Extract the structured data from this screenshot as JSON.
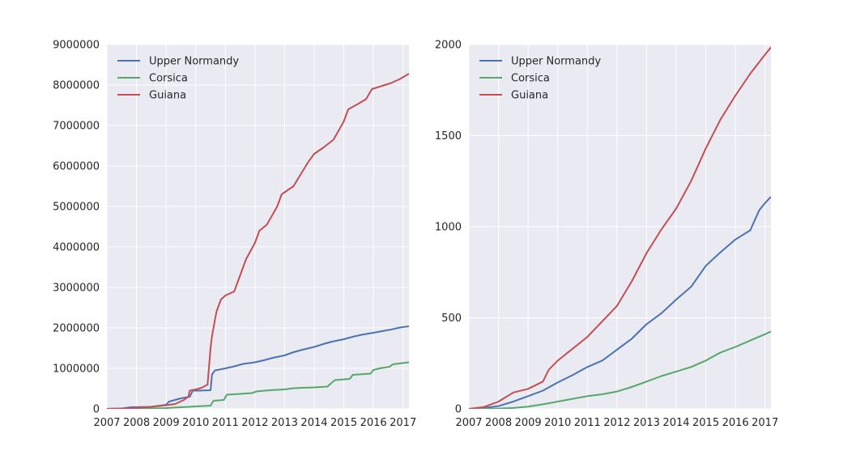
{
  "colors": {
    "background": "#EAEAF2",
    "grid": "#FFFFFF",
    "text": "#262626",
    "upper_normandy": "#4C72B0",
    "corsica": "#55A868",
    "guiana": "#C44E52"
  },
  "chart_data": [
    {
      "type": "line",
      "title": "",
      "xlabel": "",
      "ylabel": "",
      "grid": true,
      "legend_position": "top-left",
      "xlim": [
        2007.0,
        2017.2
      ],
      "ylim": [
        0,
        9000000
      ],
      "x_ticks": [
        "2007",
        "2008",
        "2009",
        "2010",
        "2011",
        "2012",
        "2013",
        "2014",
        "2015",
        "2016",
        "2017"
      ],
      "y_ticks": [
        "0",
        "1000000",
        "2000000",
        "3000000",
        "4000000",
        "5000000",
        "6000000",
        "7000000",
        "8000000",
        "9000000"
      ],
      "series": [
        {
          "name": "Upper Normandy",
          "color": "#4C72B0",
          "x": [
            2007.0,
            2007.5,
            2007.8,
            2008.5,
            2008.7,
            2009.0,
            2009.1,
            2009.3,
            2009.5,
            2009.8,
            2009.9,
            2010.1,
            2010.5,
            2010.55,
            2010.65,
            2011.0,
            2011.3,
            2011.6,
            2012.0,
            2012.3,
            2012.6,
            2013.0,
            2013.3,
            2013.6,
            2014.0,
            2014.3,
            2014.6,
            2015.0,
            2015.3,
            2015.6,
            2016.0,
            2016.3,
            2016.6,
            2016.9,
            2017.2
          ],
          "y": [
            0,
            10000,
            40000,
            50000,
            70000,
            100000,
            180000,
            220000,
            260000,
            300000,
            450000,
            450000,
            460000,
            850000,
            950000,
            1000000,
            1050000,
            1110000,
            1150000,
            1200000,
            1260000,
            1320000,
            1400000,
            1460000,
            1530000,
            1600000,
            1660000,
            1720000,
            1780000,
            1830000,
            1880000,
            1920000,
            1960000,
            2010000,
            2040000
          ]
        },
        {
          "name": "Corsica",
          "color": "#55A868",
          "x": [
            2007.0,
            2008.0,
            2008.5,
            2009.0,
            2009.5,
            2010.0,
            2010.5,
            2010.6,
            2010.95,
            2011.05,
            2011.5,
            2011.9,
            2012.05,
            2012.5,
            2013.0,
            2013.3,
            2013.6,
            2014.0,
            2014.45,
            2014.55,
            2014.7,
            2015.2,
            2015.3,
            2015.9,
            2016.0,
            2016.2,
            2016.55,
            2016.65,
            2017.2
          ],
          "y": [
            0,
            5000,
            10000,
            20000,
            40000,
            60000,
            80000,
            200000,
            220000,
            350000,
            370000,
            390000,
            430000,
            460000,
            480000,
            510000,
            520000,
            530000,
            550000,
            620000,
            710000,
            740000,
            840000,
            870000,
            960000,
            1000000,
            1040000,
            1100000,
            1150000
          ]
        },
        {
          "name": "Guiana",
          "color": "#C44E52",
          "x": [
            2007.0,
            2008.0,
            2008.5,
            2009.0,
            2009.3,
            2009.6,
            2009.75,
            2009.8,
            2010.0,
            2010.2,
            2010.4,
            2010.5,
            2010.55,
            2010.7,
            2010.85,
            2011.0,
            2011.3,
            2011.7,
            2012.0,
            2012.15,
            2012.4,
            2012.75,
            2012.9,
            2013.3,
            2013.55,
            2013.8,
            2014.0,
            2014.3,
            2014.65,
            2015.0,
            2015.15,
            2015.4,
            2015.75,
            2015.95,
            2016.3,
            2016.6,
            2016.9,
            2017.2
          ],
          "y": [
            0,
            20000,
            50000,
            90000,
            120000,
            220000,
            300000,
            450000,
            480000,
            520000,
            600000,
            1500000,
            1800000,
            2400000,
            2700000,
            2800000,
            2900000,
            3700000,
            4100000,
            4400000,
            4550000,
            5000000,
            5300000,
            5500000,
            5800000,
            6100000,
            6300000,
            6450000,
            6650000,
            7100000,
            7400000,
            7500000,
            7650000,
            7900000,
            7980000,
            8050000,
            8150000,
            8280000
          ]
        }
      ]
    },
    {
      "type": "line",
      "title": "",
      "xlabel": "",
      "ylabel": "",
      "grid": true,
      "legend_position": "top-left",
      "xlim": [
        2007.0,
        2017.2
      ],
      "ylim": [
        0,
        2000
      ],
      "x_ticks": [
        "2007",
        "2008",
        "2009",
        "2010",
        "2011",
        "2012",
        "2013",
        "2014",
        "2015",
        "2016",
        "2017"
      ],
      "y_ticks": [
        "0",
        "500",
        "1000",
        "1500",
        "2000"
      ],
      "series": [
        {
          "name": "Upper Normandy",
          "color": "#4C72B0",
          "x": [
            2007.0,
            2007.5,
            2008.0,
            2008.5,
            2009.0,
            2009.5,
            2010.0,
            2010.5,
            2011.0,
            2011.5,
            2012.0,
            2012.5,
            2013.0,
            2013.5,
            2014.0,
            2014.5,
            2015.0,
            2015.5,
            2016.0,
            2016.5,
            2016.8,
            2017.0,
            2017.2
          ],
          "y": [
            0,
            5,
            15,
            40,
            70,
            100,
            145,
            185,
            230,
            265,
            325,
            385,
            465,
            525,
            600,
            670,
            785,
            860,
            930,
            980,
            1090,
            1130,
            1165
          ]
        },
        {
          "name": "Corsica",
          "color": "#55A868",
          "x": [
            2007.0,
            2008.0,
            2008.5,
            2009.0,
            2009.5,
            2010.0,
            2010.5,
            2011.0,
            2011.5,
            2012.0,
            2012.5,
            2013.0,
            2013.5,
            2014.0,
            2014.5,
            2015.0,
            2015.5,
            2016.0,
            2016.5,
            2017.0,
            2017.2
          ],
          "y": [
            0,
            2,
            5,
            12,
            25,
            40,
            55,
            70,
            80,
            95,
            120,
            150,
            180,
            205,
            230,
            265,
            310,
            340,
            375,
            410,
            425
          ]
        },
        {
          "name": "Guiana",
          "color": "#C44E52",
          "x": [
            2007.0,
            2007.5,
            2008.0,
            2008.5,
            2009.0,
            2009.5,
            2009.7,
            2010.0,
            2010.5,
            2011.0,
            2011.5,
            2012.0,
            2012.5,
            2013.0,
            2013.5,
            2014.0,
            2014.5,
            2015.0,
            2015.5,
            2016.0,
            2016.5,
            2017.0,
            2017.2
          ],
          "y": [
            0,
            10,
            40,
            90,
            110,
            150,
            215,
            265,
            330,
            395,
            480,
            565,
            700,
            855,
            985,
            1100,
            1250,
            1430,
            1590,
            1720,
            1840,
            1945,
            1985
          ]
        }
      ]
    }
  ]
}
